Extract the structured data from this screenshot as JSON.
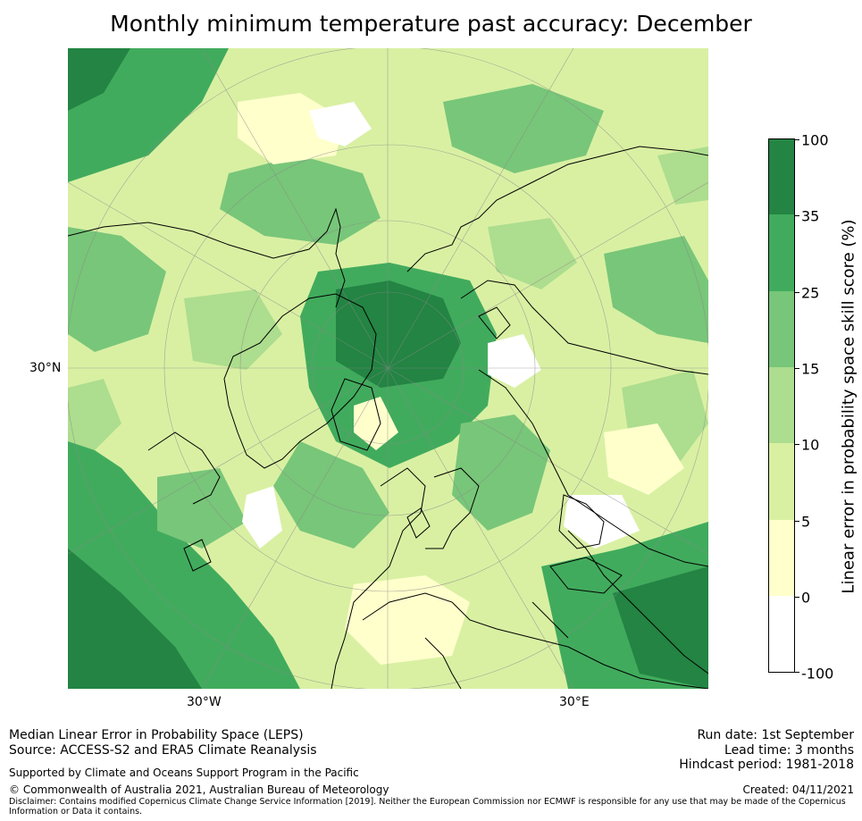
{
  "title": "Monthly minimum temperature past accuracy: December",
  "map": {
    "graticule_labels": {
      "lat_left": "30°N",
      "lon_bottom_left": "30°W",
      "lon_bottom_right": "30°E"
    }
  },
  "colorbar": {
    "title": "Linear error in probability space skill score (%)",
    "tick_labels": [
      "100",
      "35",
      "25",
      "15",
      "10",
      "5",
      "0",
      "-100"
    ],
    "bins": [
      {
        "from": 35,
        "to": 100,
        "color": "#238443"
      },
      {
        "from": 25,
        "to": 35,
        "color": "#41ab5d"
      },
      {
        "from": 15,
        "to": 25,
        "color": "#78c679"
      },
      {
        "from": 10,
        "to": 15,
        "color": "#addd8e"
      },
      {
        "from": 5,
        "to": 10,
        "color": "#d9f0a3"
      },
      {
        "from": 0,
        "to": 5,
        "color": "#ffffcc"
      },
      {
        "from": -100,
        "to": 0,
        "color": "#ffffff"
      }
    ]
  },
  "footer": {
    "left_line1": "Median Linear Error in Probability Space (LEPS)",
    "left_line2": "Source: ACCESS-S2 and ERA5 Climate Reanalysis",
    "support": "Supported by Climate and Oceans Support Program in the Pacific",
    "copyright": "© Commonwealth of Australia 2021, Australian Bureau of Meteorology",
    "disclaimer": "Disclaimer: Contains modified Copernicus Climate Change Service Information [2019]. Neither the European Commission nor ECMWF is responsible for any use that may be made of the Copernicus Information or Data it contains.",
    "run_date": "Run date: 1st September",
    "lead_time": "Lead time: 3 months",
    "hindcast": "Hindcast period: 1981-2018",
    "created": "Created: 04/11/2021"
  }
}
